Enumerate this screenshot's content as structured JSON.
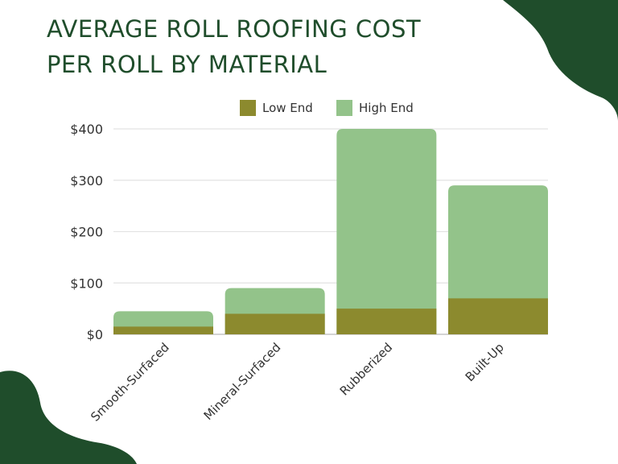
{
  "chart_data": {
    "type": "bar",
    "title_lines": [
      "AVERAGE ROLL ROOFING COST",
      "PER ROLL BY MATERIAL"
    ],
    "categories": [
      "Smooth-Surfaced",
      "Mineral-Surfaced",
      "Rubberized",
      "Built-Up"
    ],
    "series": [
      {
        "name": "Low End",
        "values": [
          15,
          40,
          50,
          70
        ],
        "color": "#8c8a2e"
      },
      {
        "name": "High End",
        "values": [
          45,
          90,
          400,
          290
        ],
        "color": "#93c38a"
      }
    ],
    "ylim": [
      0,
      400
    ],
    "yticks": [
      0,
      100,
      200,
      300,
      400
    ],
    "ytick_labels": [
      "$0",
      "$100",
      "$200",
      "$300",
      "$400"
    ],
    "grid": true,
    "legend": "top",
    "overlap": true
  },
  "colors": {
    "brand": "#1f4d2b",
    "grid": "#e3e3e3",
    "text": "#333333"
  }
}
